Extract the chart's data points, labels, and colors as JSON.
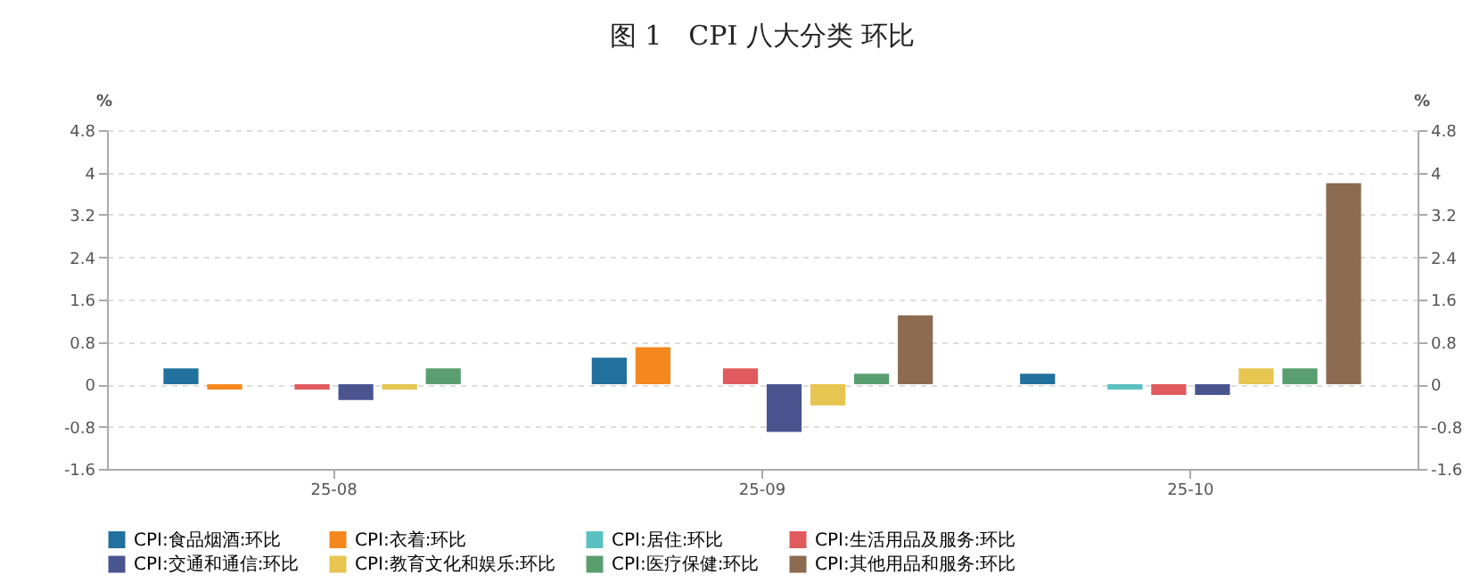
{
  "chart_data": {
    "type": "bar",
    "title": "图 1　CPI  八大分类  环比",
    "ylabel": "%",
    "y2label": "%",
    "categories": [
      "25-08",
      "25-09",
      "25-10"
    ],
    "series": [
      {
        "name": "CPI:食品烟酒:环比",
        "color": "#21709e",
        "values": [
          0.3,
          0.5,
          0.2
        ]
      },
      {
        "name": "CPI:衣着:环比",
        "color": "#f5871f",
        "values": [
          -0.1,
          0.7,
          0
        ]
      },
      {
        "name": "CPI:居住:环比",
        "color": "#5bc0c0",
        "values": [
          0,
          0,
          -0.1
        ]
      },
      {
        "name": "CPI:生活用品及服务:环比",
        "color": "#e05a5e",
        "values": [
          -0.1,
          0.3,
          -0.2
        ]
      },
      {
        "name": "CPI:交通和通信:环比",
        "color": "#4a5590",
        "values": [
          -0.3,
          -0.9,
          -0.2
        ]
      },
      {
        "name": "CPI:教育文化和娱乐:环比",
        "color": "#e6c550",
        "values": [
          -0.1,
          -0.4,
          0.3
        ]
      },
      {
        "name": "CPI:医疗保健:环比",
        "color": "#5a9e6f",
        "values": [
          0.3,
          0.2,
          0.3
        ]
      },
      {
        "name": "CPI:其他用品和服务:环比",
        "color": "#8c6b50",
        "values": [
          0,
          1.3,
          3.8
        ]
      }
    ],
    "ylim": [
      -1.6,
      4.8
    ],
    "yticks": [
      -1.6,
      -0.8,
      0,
      0.8,
      1.6,
      2.4,
      3.2,
      4,
      4.8
    ],
    "y2lim": [
      -1.6,
      4.8
    ],
    "y2ticks": [
      -1.6,
      -0.8,
      0,
      0.8,
      1.6,
      2.4,
      3.2,
      4,
      4.8
    ],
    "grid": "y",
    "legend": "bottom"
  }
}
